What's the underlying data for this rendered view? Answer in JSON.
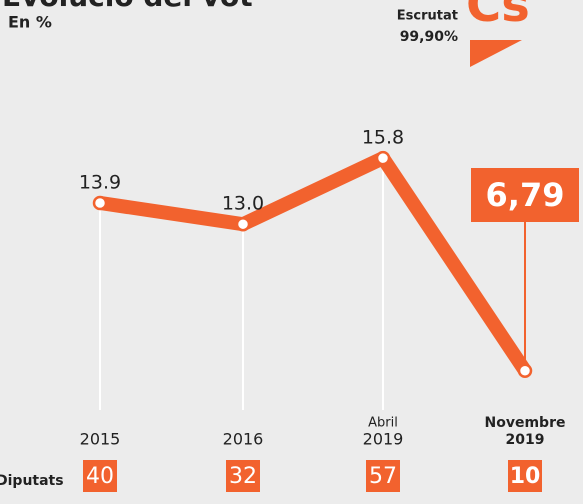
{
  "chart_data": {
    "type": "line",
    "title": "Evolució del vot",
    "subtitle": "En %",
    "counted_label": "Escrutat",
    "counted_value": "99,90%",
    "logo": "Cs",
    "categories": [
      [
        "2015"
      ],
      [
        "2016"
      ],
      [
        "Abril",
        "2019"
      ],
      [
        "Novembre",
        "2019"
      ]
    ],
    "values": [
      13.9,
      13.0,
      15.8,
      6.79
    ],
    "value_labels": [
      "13.9",
      "13.0",
      "15.8",
      "6,79"
    ],
    "color": "#f2622e",
    "ylim": [
      0,
      20
    ],
    "seats_label": "Diputats",
    "seats": [
      40,
      32,
      57,
      10
    ]
  }
}
